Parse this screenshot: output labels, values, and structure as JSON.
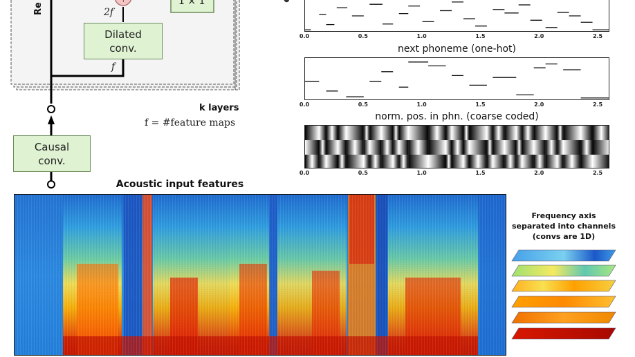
{
  "residual_block": {
    "side_label": "Re",
    "plus_symbol": "+",
    "dilated_conv_line1": "Dilated",
    "dilated_conv_line2": "conv.",
    "one_by_one_label": "1 × 1",
    "two_f_label": "2f",
    "f_label": "f",
    "k_layers_label": "k layers",
    "feature_maps_label": "f = #feature maps"
  },
  "causal_conv": {
    "line1": "Causal",
    "line2": "conv."
  },
  "acoustic": {
    "title": "Acoustic input features"
  },
  "frequency_note": {
    "line1": "Frequency axis",
    "line2": "separated into channels",
    "line3": "(convs are 1D)"
  },
  "panels": {
    "panel_top": {
      "title": ""
    },
    "next_phoneme": {
      "title": "next phoneme (one-hot)"
    },
    "norm_pos": {
      "title": "norm. pos. in phn. (coarse coded)"
    }
  },
  "chart_data": [
    {
      "type": "line",
      "title": "",
      "x_ticks": [
        "0.0",
        "0.5",
        "1.0",
        "1.5",
        "2.0",
        "2.5"
      ],
      "xlim": [
        0,
        2.6
      ],
      "segments": [
        {
          "x0": 0.0,
          "x1": 0.05,
          "y": 0.02
        },
        {
          "x0": 0.12,
          "x1": 0.18,
          "y": 0.55
        },
        {
          "x0": 0.18,
          "x1": 0.25,
          "y": 0.2
        },
        {
          "x0": 0.27,
          "x1": 0.36,
          "y": 0.78
        },
        {
          "x0": 0.4,
          "x1": 0.5,
          "y": 0.5
        },
        {
          "x0": 0.55,
          "x1": 0.66,
          "y": 0.9
        },
        {
          "x0": 0.66,
          "x1": 0.75,
          "y": 0.22
        },
        {
          "x0": 0.8,
          "x1": 0.88,
          "y": 0.58
        },
        {
          "x0": 0.88,
          "x1": 0.98,
          "y": 0.84
        },
        {
          "x0": 1.0,
          "x1": 1.1,
          "y": 0.3
        },
        {
          "x0": 1.15,
          "x1": 1.25,
          "y": 0.68
        },
        {
          "x0": 1.25,
          "x1": 1.35,
          "y": 0.98
        },
        {
          "x0": 1.35,
          "x1": 1.45,
          "y": 0.4
        },
        {
          "x0": 1.45,
          "x1": 1.55,
          "y": 0.15
        },
        {
          "x0": 1.6,
          "x1": 1.7,
          "y": 0.72
        },
        {
          "x0": 1.7,
          "x1": 1.82,
          "y": 0.6
        },
        {
          "x0": 1.82,
          "x1": 1.92,
          "y": 0.88
        },
        {
          "x0": 1.92,
          "x1": 2.02,
          "y": 0.35
        },
        {
          "x0": 2.05,
          "x1": 2.15,
          "y": 0.1
        },
        {
          "x0": 2.15,
          "x1": 2.25,
          "y": 0.62
        },
        {
          "x0": 2.25,
          "x1": 2.35,
          "y": 0.5
        },
        {
          "x0": 2.35,
          "x1": 2.45,
          "y": 0.28
        },
        {
          "x0": 2.45,
          "x1": 2.6,
          "y": 0.02
        }
      ]
    },
    {
      "type": "line",
      "title": "next phoneme (one-hot)",
      "x_ticks": [
        "0.0",
        "0.5",
        "1.0",
        "1.5",
        "2.0",
        "2.5"
      ],
      "xlim": [
        0,
        2.6
      ],
      "segments": [
        {
          "x0": 0.0,
          "x1": 0.12,
          "y": 0.45
        },
        {
          "x0": 0.18,
          "x1": 0.28,
          "y": 0.2
        },
        {
          "x0": 0.35,
          "x1": 0.5,
          "y": 0.05
        },
        {
          "x0": 0.55,
          "x1": 0.65,
          "y": 0.45
        },
        {
          "x0": 0.65,
          "x1": 0.75,
          "y": 0.7
        },
        {
          "x0": 0.8,
          "x1": 0.88,
          "y": 0.3
        },
        {
          "x0": 0.88,
          "x1": 1.05,
          "y": 0.95
        },
        {
          "x0": 1.05,
          "x1": 1.2,
          "y": 0.85
        },
        {
          "x0": 1.25,
          "x1": 1.35,
          "y": 0.6
        },
        {
          "x0": 1.4,
          "x1": 1.55,
          "y": 0.35
        },
        {
          "x0": 1.6,
          "x1": 1.8,
          "y": 0.55
        },
        {
          "x0": 1.8,
          "x1": 1.95,
          "y": 0.1
        },
        {
          "x0": 1.95,
          "x1": 2.05,
          "y": 0.8
        },
        {
          "x0": 2.05,
          "x1": 2.15,
          "y": 0.9
        },
        {
          "x0": 2.2,
          "x1": 2.35,
          "y": 0.75
        },
        {
          "x0": 2.35,
          "x1": 2.6,
          "y": 0.02
        }
      ]
    },
    {
      "type": "heatmap",
      "title": "norm. pos. in phn. (coarse coded)",
      "x_ticks": [
        "0.0",
        "0.5",
        "1.0",
        "1.5",
        "2.0",
        "2.5"
      ],
      "xlim": [
        0,
        2.6
      ],
      "rows": 3,
      "boundaries": [
        0.0,
        0.12,
        0.18,
        0.28,
        0.35,
        0.5,
        0.55,
        0.65,
        0.75,
        0.8,
        0.88,
        1.05,
        1.2,
        1.25,
        1.35,
        1.4,
        1.55,
        1.6,
        1.7,
        1.8,
        1.85,
        1.95,
        2.05,
        2.15,
        2.2,
        2.35,
        2.45,
        2.6
      ]
    }
  ]
}
